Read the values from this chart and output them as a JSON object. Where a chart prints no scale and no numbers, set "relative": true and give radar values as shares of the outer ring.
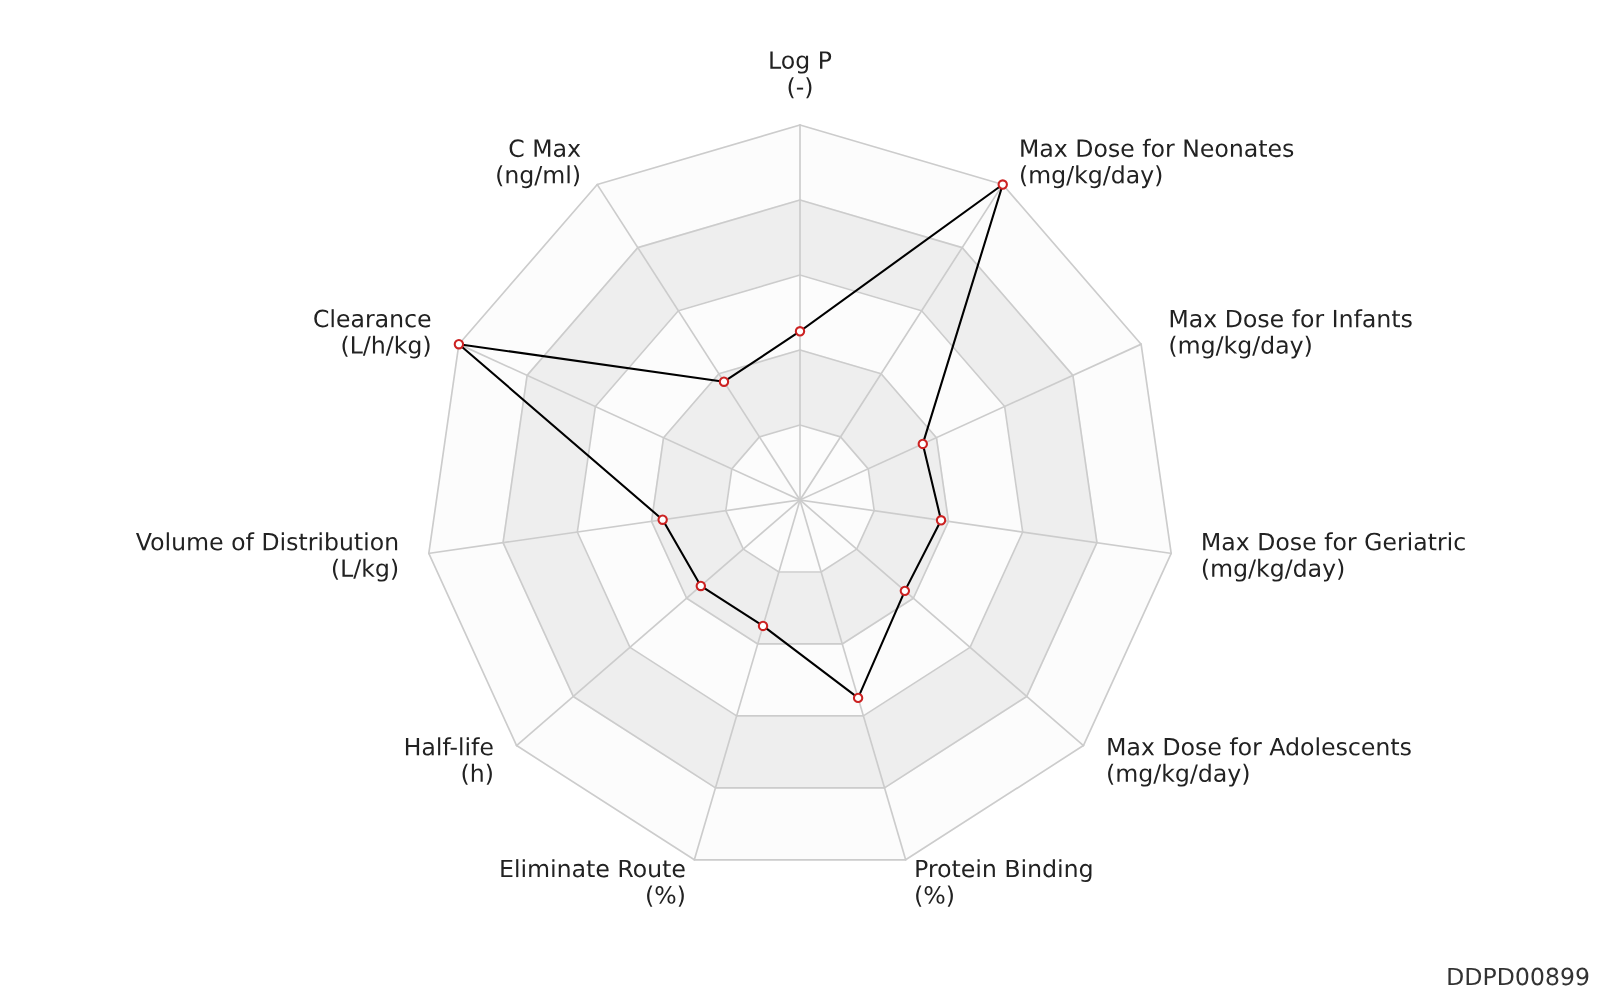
{
  "chart_data": {
    "type": "radar",
    "relative": true,
    "grid": true,
    "marker": "circle",
    "categories": [
      "Log P\n(-)",
      "Max Dose for Neonates\n(mg/kg/day)",
      "Max Dose for Infants\n(mg/kg/day)",
      "Max Dose for Geriatric\n(mg/kg/day)",
      "Max Dose for Adolescents\n(mg/kg/day)",
      "Protein Binding\n(%)",
      "Eliminate Route\n(%)",
      "Half-life\n(h)",
      "Volume of Distribution\n(L/kg)",
      "Clearance\n(L/h/kg)",
      "C Max\n(ng/ml)"
    ],
    "series": [
      {
        "color": "#000000",
        "values": [
          0.45,
          1.0,
          0.36,
          0.38,
          0.37,
          0.55,
          0.35,
          0.35,
          0.37,
          1.0,
          0.375
        ]
      }
    ],
    "annotations": [
      "DDPD00899"
    ]
  }
}
